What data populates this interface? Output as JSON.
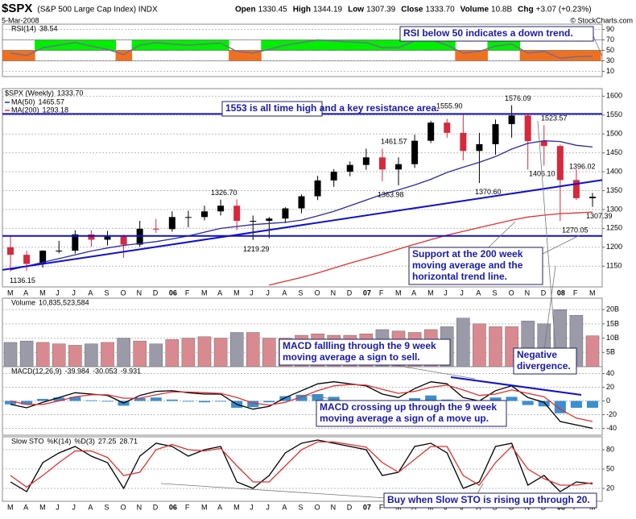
{
  "header": {
    "symbol": "$SPX",
    "name": "(S&P 500 Large Cap Index) INDX",
    "date": "5-Mar-2008",
    "credit": "© StockCharts.com",
    "quote": [
      [
        "Open",
        "1330.45"
      ],
      [
        "High",
        "1344.19"
      ],
      [
        "Low",
        "1307.39"
      ],
      [
        "Close",
        "1333.70"
      ],
      [
        "Volume",
        "10.8B"
      ],
      [
        "Chg",
        "+3.07 (+0.23%)"
      ]
    ]
  },
  "chart_data": [
    {
      "type": "line",
      "series": [
        {
          "name": "RSI(14)",
          "color": "#6f6f8f",
          "values": [
            45,
            40,
            55,
            60,
            65,
            58,
            52,
            42,
            60,
            65,
            62,
            60,
            62,
            64,
            48,
            45,
            52,
            60,
            65,
            70,
            68,
            66,
            65,
            55,
            55,
            68,
            70,
            60,
            45,
            48,
            58,
            62,
            45,
            48,
            35,
            38,
            38.54
          ]
        }
      ],
      "ylim": [
        0,
        100
      ],
      "yticks": [
        10,
        30,
        50,
        70,
        90
      ],
      "bands": {
        "mid": 50,
        "upper": 70,
        "lower": 30,
        "above_color": "#00ee00",
        "below_color": "#f07020"
      },
      "annotations": [
        {
          "lines": [
            "RSI below 50 indicates a down trend."
          ]
        }
      ]
    },
    {
      "type": "candlestick",
      "legend_title": "$SPX (Weekly)",
      "last_label": "1333.70",
      "categories": [
        "M",
        "A",
        "M",
        "J",
        "J",
        "A",
        "S",
        "O",
        "N",
        "D",
        "06",
        "F",
        "M",
        "A",
        "M",
        "J",
        "J",
        "A",
        "S",
        "O",
        "N",
        "D",
        "07",
        "F",
        "M",
        "A",
        "M",
        "J",
        "J",
        "A",
        "S",
        "O",
        "N",
        "D",
        "08",
        "F",
        "M"
      ],
      "open": [
        1200,
        1180,
        1156,
        1191,
        1191,
        1234,
        1220,
        1228,
        1207,
        1249,
        1248,
        1280,
        1280,
        1295,
        1310,
        1270,
        1270,
        1276,
        1303,
        1335,
        1377,
        1400,
        1418,
        1438,
        1406,
        1420,
        1482,
        1530,
        1503,
        1455,
        1473,
        1526,
        1549,
        1481,
        1468,
        1378,
        1330
      ],
      "high": [
        1229,
        1191,
        1192,
        1217,
        1245,
        1245,
        1243,
        1233,
        1270,
        1275,
        1295,
        1297,
        1310,
        1326,
        1327,
        1284,
        1280,
        1306,
        1340,
        1389,
        1407,
        1427,
        1461,
        1461,
        1438,
        1498,
        1535,
        1540,
        1555,
        1503,
        1538,
        1576,
        1553,
        1523,
        1472,
        1406,
        1344
      ],
      "low": [
        1136,
        1137,
        1146,
        1184,
        1183,
        1201,
        1205,
        1172,
        1201,
        1238,
        1241,
        1253,
        1271,
        1284,
        1245,
        1219,
        1224,
        1264,
        1290,
        1325,
        1360,
        1388,
        1405,
        1375,
        1364,
        1410,
        1476,
        1490,
        1430,
        1370,
        1445,
        1490,
        1406,
        1416,
        1270,
        1325,
        1307
      ],
      "close": [
        1180,
        1156,
        1191,
        1191,
        1234,
        1220,
        1228,
        1207,
        1249,
        1248,
        1280,
        1280,
        1295,
        1310,
        1270,
        1270,
        1276,
        1303,
        1335,
        1377,
        1400,
        1418,
        1438,
        1406,
        1420,
        1482,
        1530,
        1503,
        1455,
        1473,
        1526,
        1549,
        1481,
        1468,
        1378,
        1330,
        1333.7
      ],
      "up_color": "#000000",
      "down_color": "#d8283c",
      "series": [
        {
          "name": "MA(50)",
          "color": "#2a2aa0",
          "values": [
            1140,
            1150,
            1160,
            1170,
            1180,
            1190,
            1198,
            1205,
            1210,
            1215,
            1222,
            1230,
            1240,
            1250,
            1255,
            1260,
            1263,
            1266,
            1272,
            1283,
            1295,
            1310,
            1325,
            1340,
            1352,
            1365,
            1380,
            1398,
            1412,
            1425,
            1440,
            1460,
            1475,
            1482,
            1480,
            1470,
            1465.57
          ]
        },
        {
          "name": "MA(200)",
          "color": "#e03030",
          "values": [
            null,
            null,
            null,
            null,
            null,
            null,
            null,
            null,
            null,
            null,
            null,
            null,
            null,
            null,
            null,
            null,
            1100,
            1110,
            1120,
            1132,
            1145,
            1158,
            1170,
            1182,
            1195,
            1208,
            1220,
            1232,
            1242,
            1252,
            1262,
            1272,
            1280,
            1285,
            1289,
            1291,
            1293.18
          ]
        }
      ],
      "ylim": [
        1095,
        1620
      ],
      "yticks": [
        1150,
        1200,
        1250,
        1300,
        1350,
        1400,
        1450,
        1500,
        1550,
        1600
      ],
      "grid": true,
      "line_color": "#1010d0",
      "reference_lines": [
        1553,
        1230
      ],
      "trend_line": [
        1140,
        1378
      ],
      "peak_labels": [
        {
          "value": 1136.15,
          "label": "1136.15"
        },
        {
          "value": 1326.7,
          "label": "1326.70"
        },
        {
          "value": 1219.29,
          "label": "1219.29"
        },
        {
          "value": 1461.57,
          "label": "1461.57"
        },
        {
          "value": 1363.98,
          "label": "1363.98"
        },
        {
          "value": 1555.9,
          "label": "1555.90"
        },
        {
          "value": 1370.6,
          "label": "1370.60"
        },
        {
          "value": 1576.09,
          "label": "1576.09"
        },
        {
          "value": 1406.1,
          "label": "1406.10"
        },
        {
          "value": 1523.57,
          "label": "1523.57"
        },
        {
          "value": 1396.02,
          "label": "1396.02"
        },
        {
          "value": 1307.39,
          "label": "1307.39"
        },
        {
          "value": 1270.05,
          "label": "1270.05"
        }
      ],
      "annotations": [
        {
          "lines": [
            "1553 is all time high and a key resistance area."
          ]
        },
        {
          "lines": [
            "Support at the 200 week",
            "moving average and the",
            "horizontal trend line."
          ]
        }
      ]
    },
    {
      "type": "bar",
      "legend_title": "Volume",
      "last_label": "10,835,523,584",
      "up_color": "#d98a90",
      "down_color": "#9a9aa8",
      "values": [
        8.5,
        9,
        8.5,
        8,
        7.5,
        8,
        8.5,
        10,
        9,
        8,
        9.5,
        10,
        10.5,
        10,
        12,
        12,
        10,
        10,
        11,
        11.5,
        11,
        11,
        11.5,
        13,
        12.5,
        12,
        13,
        14,
        17,
        15,
        14,
        14,
        16,
        15,
        20,
        18,
        10.835523584
      ],
      "ylim": [
        0,
        24
      ],
      "yticks": [
        {
          "value": 5,
          "label": "5B"
        },
        {
          "value": 10,
          "label": "10B"
        },
        {
          "value": 15,
          "label": "15B"
        },
        {
          "value": 20,
          "label": "20B"
        }
      ],
      "grid": true,
      "annotations": [
        {
          "lines": [
            "MACD fallling through the 9 week",
            "moving average a sign to sell."
          ]
        },
        {
          "lines": [
            "Negative",
            "divergence."
          ]
        }
      ]
    },
    {
      "type": "line",
      "legend_title": "MACD(12,26,9)",
      "series": [
        {
          "color": "#000000",
          "values": [
            -5,
            -10,
            -2,
            5,
            12,
            10,
            8,
            -3,
            8,
            14,
            15,
            12,
            10,
            10,
            -5,
            -12,
            -8,
            5,
            15,
            25,
            28,
            25,
            22,
            10,
            5,
            18,
            28,
            25,
            5,
            0,
            15,
            22,
            5,
            -2,
            -30,
            -35,
            -39.984
          ]
        },
        {
          "color": "#e03030",
          "values": [
            0,
            -5,
            -5,
            0,
            6,
            9,
            9,
            4,
            4,
            9,
            13,
            13,
            12,
            11,
            5,
            -3,
            -6,
            -2,
            6,
            15,
            22,
            24,
            23,
            17,
            11,
            14,
            20,
            23,
            16,
            8,
            10,
            16,
            11,
            6,
            -12,
            -25,
            -30.053
          ]
        },
        {
          "color": "#3a8fd0",
          "style": "histogram",
          "values": [
            -5,
            -5,
            3,
            5,
            6,
            1,
            -1,
            -7,
            4,
            5,
            2,
            -1,
            -2,
            -1,
            -10,
            -9,
            -2,
            7,
            9,
            10,
            6,
            1,
            -1,
            -7,
            -6,
            4,
            8,
            2,
            -11,
            -8,
            5,
            6,
            -6,
            -8,
            -18,
            -10,
            -9.931
          ]
        }
      ],
      "ylim": [
        -50,
        50
      ],
      "yticks": [
        -40,
        -20,
        0,
        20,
        40
      ],
      "grid": true,
      "annotations": [
        {
          "lines": [
            "MACD crossing up through the 9 week",
            "moving average a sign of a move up."
          ]
        }
      ]
    },
    {
      "type": "line",
      "legend_title": "Slow STO",
      "categories": [
        "M",
        "A",
        "M",
        "J",
        "J",
        "A",
        "S",
        "O",
        "N",
        "D",
        "06",
        "F",
        "M",
        "A",
        "M",
        "J",
        "J",
        "A",
        "S",
        "O",
        "N",
        "D",
        "07",
        "F",
        "M",
        "A",
        "M",
        "J",
        "J",
        "A",
        "S",
        "O",
        "N",
        "D",
        "08",
        "F",
        "M"
      ],
      "series": [
        {
          "name": "%K(14)",
          "color": "#000000",
          "values": [
            30,
            15,
            60,
            75,
            85,
            70,
            60,
            20,
            70,
            90,
            85,
            70,
            80,
            85,
            30,
            20,
            40,
            75,
            90,
            95,
            90,
            85,
            80,
            40,
            45,
            85,
            90,
            75,
            20,
            30,
            85,
            90,
            25,
            40,
            15,
            30,
            27.25
          ]
        },
        {
          "name": "%D(3)",
          "color": "#e03030",
          "values": [
            40,
            22,
            40,
            60,
            78,
            78,
            68,
            40,
            45,
            80,
            88,
            80,
            78,
            82,
            55,
            30,
            30,
            55,
            80,
            92,
            92,
            88,
            84,
            60,
            45,
            65,
            85,
            85,
            40,
            25,
            60,
            85,
            50,
            35,
            25,
            25,
            28.71
          ]
        }
      ],
      "ylim": [
        0,
        100
      ],
      "yticks": [
        20,
        50,
        80
      ],
      "grid": true,
      "annotations": [
        {
          "lines": [
            "Buy when Slow STO is rising up through 20."
          ]
        }
      ]
    }
  ]
}
